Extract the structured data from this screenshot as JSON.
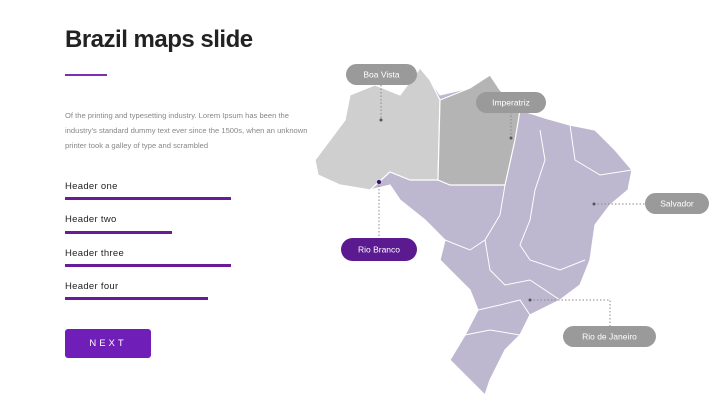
{
  "title": "Brazil maps slide",
  "body": "Of the printing and typesetting industry. Lorem Ipsum has been the industry's standard dummy text ever since the 1500s, when an unknown printer took a galley of type and scrambled",
  "headers": [
    "Header one",
    "Header two",
    "Header three",
    "Header four"
  ],
  "button": "NEXT",
  "map_labels": {
    "boa_vista": "Boa Vista",
    "imperatriz": "Imperatriz",
    "salvador": "Salvador",
    "rio_branco": "Rio Branco",
    "rio_de_janeiro": "Rio de Janeiro"
  }
}
